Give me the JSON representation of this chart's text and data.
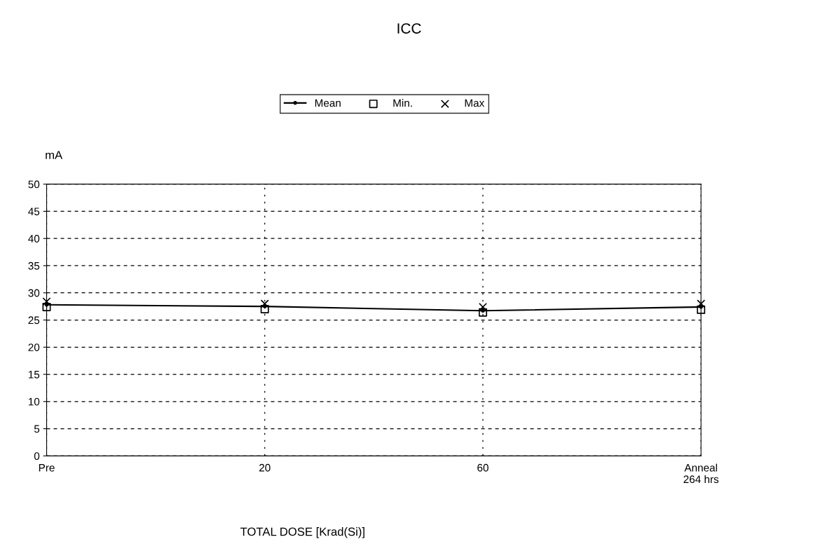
{
  "chart_data": {
    "type": "line",
    "title": "ICC",
    "ylabel": "mA",
    "xlabel": "TOTAL DOSE [Krad(Si)]",
    "categories": [
      "Pre",
      "20",
      "60",
      "Anneal\n264 hrs"
    ],
    "series": [
      {
        "name": "Mean",
        "color": "#000000",
        "values": [
          27.8,
          27.5,
          26.7,
          27.4
        ],
        "marker": "circle",
        "line_style": "solid"
      },
      {
        "name": "Min.",
        "color": "#000000",
        "values": [
          27.4,
          27.0,
          26.4,
          26.9
        ],
        "type": "scatter",
        "marker": "square"
      },
      {
        "name": "Max",
        "color": "#000000",
        "values": [
          28.4,
          28.0,
          27.4,
          28.0
        ],
        "type": "scatter",
        "marker": "cross"
      }
    ],
    "ylim": [
      0,
      50
    ],
    "yticks": [
      0,
      5,
      10,
      15,
      20,
      25,
      30,
      35,
      40,
      45,
      50
    ],
    "grid": true,
    "legend": "top"
  }
}
